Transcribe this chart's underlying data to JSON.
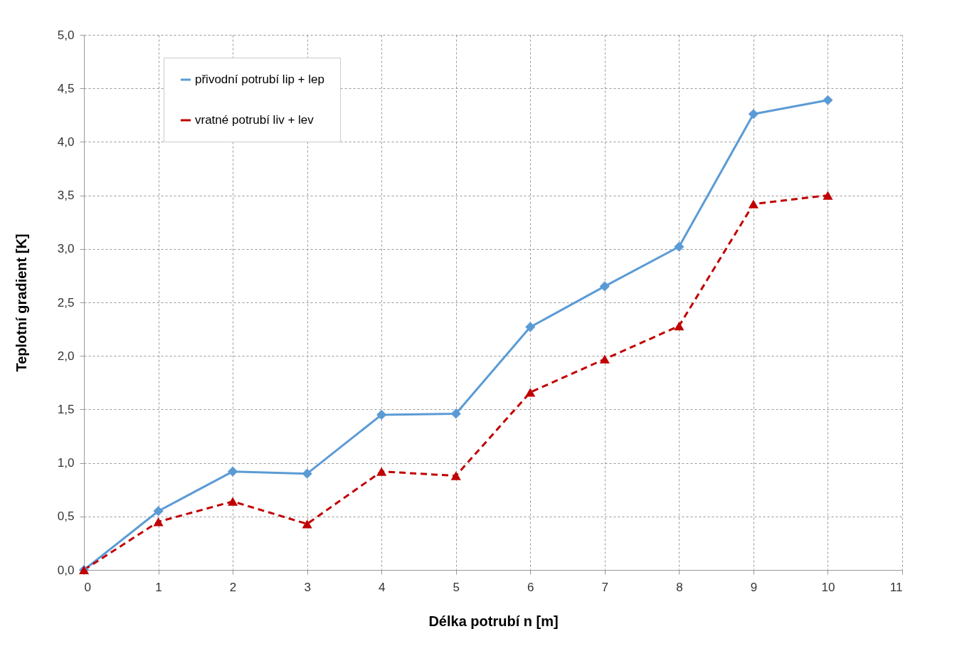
{
  "chart_data": {
    "type": "line",
    "xlabel": "Délka potrubí n [m]",
    "ylabel": "Teplotní gradient  [K]",
    "x": [
      0,
      1,
      2,
      3,
      4,
      5,
      6,
      7,
      8,
      9,
      10
    ],
    "series": [
      {
        "name": "přivodní potrubí lip + lep",
        "color": "#5b9bd5",
        "marker": "diamond",
        "line_style": "solid",
        "values": [
          0,
          0.55,
          0.92,
          0.9,
          1.45,
          1.46,
          2.27,
          2.65,
          3.02,
          4.26,
          4.39
        ]
      },
      {
        "name": "vratné potrubí liv + lev",
        "color": "#c00000",
        "marker": "triangle",
        "line_style": "dashed",
        "values": [
          0,
          0.45,
          0.64,
          0.43,
          0.92,
          0.88,
          1.66,
          1.97,
          2.28,
          3.42,
          3.5
        ]
      }
    ],
    "xlim": [
      0,
      11
    ],
    "xticks": [
      0,
      1,
      2,
      3,
      4,
      5,
      6,
      7,
      8,
      9,
      10,
      11
    ],
    "ylim": [
      0,
      5
    ],
    "yticks": [
      {
        "value": 0,
        "label": "0,0"
      },
      {
        "value": 0.5,
        "label": "0,5"
      },
      {
        "value": 1,
        "label": "1,0"
      },
      {
        "value": 1.5,
        "label": "1,5"
      },
      {
        "value": 2,
        "label": "2,0"
      },
      {
        "value": 2.5,
        "label": "2,5"
      },
      {
        "value": 3,
        "label": "3,0"
      },
      {
        "value": 3.5,
        "label": "3,5"
      },
      {
        "value": 4,
        "label": "4,0"
      },
      {
        "value": 4.5,
        "label": "4,5"
      },
      {
        "value": 5,
        "label": "5,0"
      }
    ],
    "grid": true,
    "legend": "top left"
  }
}
